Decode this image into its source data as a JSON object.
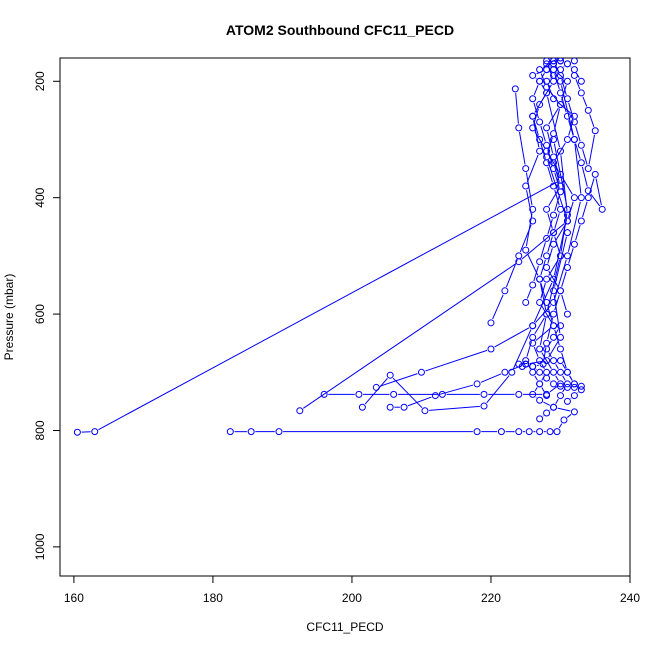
{
  "chart_data": {
    "type": "line",
    "title": "ATOM2 Southbound CFC11_PECD",
    "xlabel": "CFC11_PECD",
    "ylabel": "Pressure (mbar)",
    "xlim": [
      158,
      240
    ],
    "ylim": [
      1050,
      160
    ],
    "y_axis_inverted": true,
    "x_ticks": [
      160,
      180,
      200,
      220,
      240
    ],
    "y_ticks": [
      200,
      400,
      600,
      800,
      1000
    ],
    "grid": false,
    "legend": "none",
    "series_color": "#0000ff",
    "marker": "open-circle",
    "series": [
      {
        "x": [
          160.5,
          163,
          230,
          229,
          228,
          230,
          231,
          229,
          228,
          230
        ],
        "y": [
          803,
          802,
          370,
          330,
          280,
          240,
          200,
          180,
          170,
          160
        ]
      },
      {
        "x": [
          182.5,
          185.5,
          189.5,
          218,
          221.5,
          224,
          225.5,
          227,
          228.5,
          229.5,
          230.5,
          232,
          229,
          227,
          226,
          227,
          228,
          227,
          226,
          229,
          227,
          228,
          230,
          229,
          228,
          230,
          229,
          231,
          232,
          229,
          228,
          229,
          230,
          231,
          232
        ],
        "y": [
          802,
          802,
          802,
          802,
          802,
          802,
          802,
          802,
          802,
          802,
          782,
          768,
          760,
          748,
          738,
          720,
          700,
          680,
          650,
          620,
          580,
          540,
          500,
          460,
          420,
          380,
          340,
          300,
          260,
          230,
          200,
          190,
          180,
          170,
          165
        ]
      },
      {
        "x": [
          192.5,
          224,
          231,
          228,
          229,
          230,
          228,
          227,
          229
        ],
        "y": [
          766,
          510,
          440,
          330,
          290,
          240,
          210,
          180,
          165
        ]
      },
      {
        "x": [
          196,
          201,
          206,
          213,
          219,
          224,
          228,
          230,
          229,
          227,
          228,
          230,
          231,
          229
        ],
        "y": [
          738,
          738,
          738,
          738,
          738,
          738,
          738,
          720,
          700,
          660,
          600,
          500,
          420,
          300
        ]
      },
      {
        "x": [
          201.5,
          205.5,
          210.5,
          219,
          223,
          226,
          229,
          231,
          230,
          228
        ],
        "y": [
          760,
          705,
          766,
          758,
          700,
          620,
          540,
          430,
          320,
          220
        ]
      },
      {
        "x": [
          203.5,
          210,
          220,
          226,
          229,
          231,
          233,
          232,
          230
        ],
        "y": [
          726,
          700,
          660,
          620,
          580,
          500,
          400,
          300,
          200
        ]
      },
      {
        "x": [
          205.5,
          207.5,
          212,
          218,
          222,
          225,
          228,
          230,
          229,
          231
        ],
        "y": [
          760,
          760,
          740,
          720,
          700,
          686,
          680,
          640,
          560,
          460
        ]
      },
      {
        "x": [
          220,
          222,
          224,
          226,
          225,
          227,
          226,
          228,
          227,
          226,
          228,
          229,
          230
        ],
        "y": [
          615,
          560,
          500,
          440,
          380,
          320,
          260,
          220,
          200,
          190,
          180,
          170,
          165
        ]
      },
      {
        "x": [
          223.5,
          224,
          225,
          226,
          225,
          227,
          228,
          226,
          225,
          226,
          227,
          228
        ],
        "y": [
          213,
          280,
          350,
          420,
          490,
          540,
          600,
          640,
          680,
          700,
          720,
          740
        ]
      },
      {
        "x": [
          224.5,
          226,
          227.5,
          228,
          229,
          230,
          231,
          232,
          233,
          234,
          235,
          236,
          234,
          233,
          232,
          231,
          230,
          229
        ],
        "y": [
          690,
          690,
          686,
          650,
          600,
          560,
          520,
          480,
          440,
          400,
          360,
          420,
          388,
          340,
          300,
          260,
          220,
          180
        ]
      },
      {
        "x": [
          226,
          227,
          228,
          229,
          230,
          229,
          228,
          227,
          228,
          229,
          230,
          231,
          232,
          233,
          232,
          231
        ],
        "y": [
          260,
          300,
          340,
          380,
          420,
          460,
          500,
          540,
          580,
          620,
          660,
          700,
          720,
          730,
          740,
          750
        ]
      },
      {
        "x": [
          227,
          228,
          229,
          230,
          231,
          230,
          229,
          228,
          229,
          230
        ],
        "y": [
          780,
          770,
          760,
          740,
          720,
          700,
          680,
          660,
          640,
          620
        ]
      },
      {
        "x": [
          228,
          229,
          227,
          226,
          228,
          230,
          232,
          231,
          229,
          228,
          230,
          231
        ],
        "y": [
          165,
          200,
          240,
          280,
          320,
          360,
          400,
          440,
          480,
          520,
          560,
          600
        ]
      },
      {
        "x": [
          229,
          230,
          231,
          232,
          233,
          234,
          235,
          234,
          233,
          232
        ],
        "y": [
          165,
          190,
          230,
          270,
          310,
          350,
          285,
          250,
          220,
          190
        ]
      },
      {
        "x": [
          225,
          226,
          227,
          228,
          229,
          230,
          229,
          228,
          227,
          226,
          227,
          228,
          229,
          230,
          231,
          232,
          233
        ],
        "y": [
          580,
          550,
          510,
          470,
          430,
          390,
          350,
          310,
          270,
          230,
          200,
          180,
          170,
          165,
          170,
          180,
          200
        ]
      },
      {
        "x": [
          224,
          225,
          226,
          227,
          228,
          229,
          230,
          231,
          232,
          233,
          232,
          231,
          230
        ],
        "y": [
          686,
          686,
          690,
          700,
          710,
          720,
          724,
          726,
          726,
          724,
          720,
          700,
          680
        ]
      }
    ]
  }
}
